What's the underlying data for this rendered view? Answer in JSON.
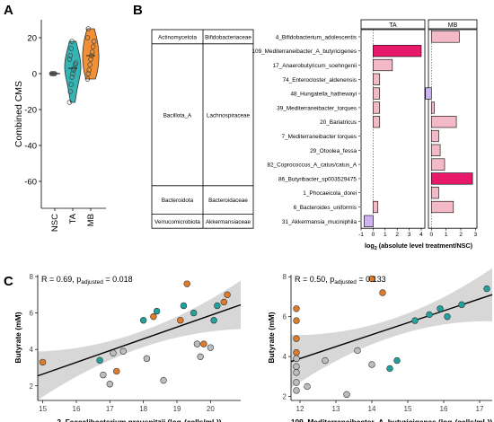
{
  "panels": {
    "a": "A",
    "b": "B",
    "c": "C"
  },
  "chart_data": [
    {
      "id": "A",
      "type": "violin",
      "ylabel": "Combined CMS",
      "categories": [
        "NSC",
        "TA",
        "MB"
      ],
      "ylim": [
        -75,
        30
      ],
      "yticks": [
        -60,
        -40,
        -20,
        0,
        20
      ],
      "colors": {
        "NSC": "#2e8b88",
        "TA": "#2ab0b0",
        "MB": "#f08a2a"
      },
      "series": [
        {
          "name": "NSC",
          "values": [
            0,
            0,
            0,
            0,
            0
          ]
        },
        {
          "name": "TA",
          "values": [
            -16,
            -10,
            -6,
            -2,
            0,
            2,
            3,
            5,
            6,
            8,
            10,
            14,
            18
          ]
        },
        {
          "name": "MB",
          "values": [
            -3,
            0,
            2,
            5,
            8,
            10,
            12,
            15,
            18,
            20,
            25
          ]
        }
      ]
    },
    {
      "id": "B",
      "type": "bar",
      "xlabel": "log2 (absolute level treatment/NSC)",
      "xlabel_parts": {
        "pre": "log",
        "sub": "2",
        "post": " (absolute level treatment/NSC)"
      },
      "facets": [
        "TA",
        "MB"
      ],
      "facet_ranges": {
        "TA": [
          -1,
          4.3
        ],
        "MB": [
          -0.2,
          3.1
        ]
      },
      "facet_ticks": {
        "TA": [
          -1,
          0,
          1,
          2,
          3,
          4
        ],
        "MB": [
          0,
          1,
          2,
          3
        ]
      },
      "categories": [
        "4_Bifidobacterium_adolescentis",
        "109_Mediterraneibacter_A_butyricigenes",
        "17_Anaerobutyricum_soehngenii",
        "74_Enterocloster_aldenensis",
        "48_Hungatella_hathewayi",
        "39_Mediterraneibacter_torques",
        "20_Bariatricus",
        "7_Mediterraneibacter torques",
        "29_Otoolea_fessa",
        "82_Coprococcus_A_catus/catus_A",
        "86_Butyribacter_sp003529475",
        "1_Phocaeicola_dorei",
        "6_Bacteroides_uniformis",
        "31_Akkermansia_muciniphila"
      ],
      "series": [
        {
          "name": "TA",
          "values": [
            0,
            4.0,
            1.6,
            0.55,
            0.55,
            0.55,
            0.55,
            0,
            0,
            0,
            0,
            0,
            0.4,
            -0.75
          ]
        },
        {
          "name": "MB",
          "values": [
            1.9,
            0,
            0,
            0,
            -0.4,
            0.2,
            1.7,
            0.5,
            0.6,
            0.9,
            2.8,
            0.5,
            1.5,
            0
          ]
        }
      ],
      "phyla": [
        {
          "phylum": "Actinomycetota",
          "family": "Bifidobacteriaceae",
          "rows": 1
        },
        {
          "phylum": "Bacillota_A",
          "family": "Lachnospiraceae",
          "rows": 10
        },
        {
          "phylum": "Bacteroidota",
          "family": "Bacteroidaceae",
          "rows": 2
        },
        {
          "phylum": "Verrucomicrobiota",
          "family": "Akkermansiaceae",
          "rows": 1
        }
      ]
    },
    {
      "id": "C1",
      "type": "scatter",
      "annotation": {
        "r": "R = 0.69, p",
        "sub": "adjusted",
        "rest": " = 0.018"
      },
      "xlabel": {
        "pre": "2_Faecalibacterium prausnitzii (log",
        "sub": "2",
        "post": "(cells/mL))"
      },
      "ylabel": "Butyrate (mM)",
      "xlim": [
        14.85,
        20.9
      ],
      "ylim": [
        1.2,
        8.1
      ],
      "xticks": [
        15,
        16,
        17,
        18,
        19,
        20
      ],
      "yticks": [
        2,
        4,
        6,
        8
      ],
      "fit": {
        "x0": 14.85,
        "y0": 2.55,
        "x1": 20.9,
        "y1": 6.45
      },
      "points": [
        {
          "x": 15.0,
          "y": 3.3,
          "g": "MB"
        },
        {
          "x": 16.7,
          "y": 3.4,
          "g": "TA"
        },
        {
          "x": 16.8,
          "y": 2.6,
          "g": "NSC"
        },
        {
          "x": 17.0,
          "y": 2.1,
          "g": "NSC"
        },
        {
          "x": 17.1,
          "y": 3.8,
          "g": "NSC"
        },
        {
          "x": 17.2,
          "y": 2.8,
          "g": "MB"
        },
        {
          "x": 17.4,
          "y": 3.9,
          "g": "NSC"
        },
        {
          "x": 18.0,
          "y": 5.6,
          "g": "TA"
        },
        {
          "x": 18.3,
          "y": 5.8,
          "g": "MB"
        },
        {
          "x": 18.4,
          "y": 6.1,
          "g": "TA"
        },
        {
          "x": 18.1,
          "y": 3.5,
          "g": "NSC"
        },
        {
          "x": 18.6,
          "y": 2.3,
          "g": "NSC"
        },
        {
          "x": 19.1,
          "y": 5.6,
          "g": "MB"
        },
        {
          "x": 19.2,
          "y": 6.4,
          "g": "TA"
        },
        {
          "x": 19.3,
          "y": 7.6,
          "g": "MB"
        },
        {
          "x": 19.5,
          "y": 6.0,
          "g": "TA"
        },
        {
          "x": 19.6,
          "y": 4.3,
          "g": "NSC"
        },
        {
          "x": 19.7,
          "y": 3.6,
          "g": "NSC"
        },
        {
          "x": 19.8,
          "y": 4.3,
          "g": "MB"
        },
        {
          "x": 20.0,
          "y": 4.1,
          "g": "NSC"
        },
        {
          "x": 20.2,
          "y": 6.4,
          "g": "TA"
        },
        {
          "x": 20.1,
          "y": 5.6,
          "g": "TA"
        },
        {
          "x": 20.4,
          "y": 6.6,
          "g": "MB"
        },
        {
          "x": 20.5,
          "y": 7.0,
          "g": "MB"
        }
      ]
    },
    {
      "id": "C2",
      "type": "scatter",
      "annotation": {
        "r": "R = 0.50, p",
        "sub": "adjusted",
        "rest": " = 0.133"
      },
      "xlabel": {
        "pre": "109_Mediterraneibacter_A_butyricigenes (log",
        "sub": "2",
        "post": "(cells/mL))"
      },
      "ylabel": "Butyrate (mM)",
      "xlim": [
        11.75,
        17.35
      ],
      "ylim": [
        1.8,
        8.1
      ],
      "xticks": [
        12,
        13,
        14,
        15,
        16,
        17
      ],
      "yticks": [
        2,
        4,
        6,
        8
      ],
      "fit": {
        "x0": 11.75,
        "y0": 3.75,
        "x1": 17.35,
        "y1": 7.1
      },
      "points": [
        {
          "x": 11.9,
          "y": 6.4,
          "g": "MB"
        },
        {
          "x": 11.9,
          "y": 5.8,
          "g": "MB"
        },
        {
          "x": 11.9,
          "y": 4.9,
          "g": "MB"
        },
        {
          "x": 11.9,
          "y": 4.2,
          "g": "MB"
        },
        {
          "x": 11.9,
          "y": 3.9,
          "g": "NSC"
        },
        {
          "x": 11.9,
          "y": 3.5,
          "g": "NSC"
        },
        {
          "x": 11.9,
          "y": 3.2,
          "g": "NSC"
        },
        {
          "x": 11.9,
          "y": 2.7,
          "g": "NSC"
        },
        {
          "x": 11.9,
          "y": 2.3,
          "g": "NSC"
        },
        {
          "x": 12.2,
          "y": 2.5,
          "g": "NSC"
        },
        {
          "x": 12.7,
          "y": 3.8,
          "g": "NSC"
        },
        {
          "x": 13.3,
          "y": 2.1,
          "g": "NSC"
        },
        {
          "x": 13.6,
          "y": 4.3,
          "g": "NSC"
        },
        {
          "x": 14.0,
          "y": 7.9,
          "g": "MB"
        },
        {
          "x": 14.0,
          "y": 3.6,
          "g": "NSC"
        },
        {
          "x": 14.3,
          "y": 7.2,
          "g": "MB"
        },
        {
          "x": 14.5,
          "y": 3.4,
          "g": "TA"
        },
        {
          "x": 14.7,
          "y": 3.8,
          "g": "TA"
        },
        {
          "x": 15.2,
          "y": 5.8,
          "g": "TA"
        },
        {
          "x": 15.6,
          "y": 6.1,
          "g": "TA"
        },
        {
          "x": 15.9,
          "y": 6.4,
          "g": "TA"
        },
        {
          "x": 16.1,
          "y": 6.0,
          "g": "TA"
        },
        {
          "x": 16.5,
          "y": 6.6,
          "g": "TA"
        },
        {
          "x": 17.2,
          "y": 7.4,
          "g": "TA"
        }
      ]
    }
  ],
  "colors": {
    "MB": "#e07b2a",
    "TA": "#21a39d",
    "NSC": "#bdbdbd",
    "bar_pos": "#f4b9c7",
    "bar_pos_strong": "#e8196a",
    "bar_neg": "#cdb3f0",
    "fit_band": "#bdbdbd"
  }
}
